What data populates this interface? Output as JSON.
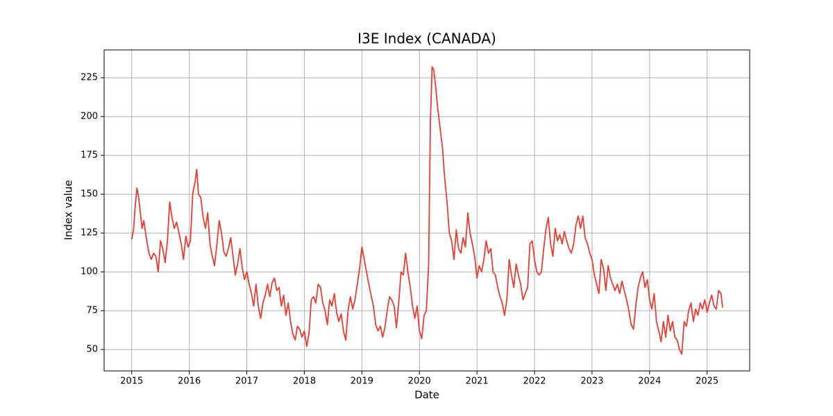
{
  "chart_data": {
    "type": "line",
    "title": "I3E Index (CANADA)",
    "x_label": "Date",
    "y_label": "Index value",
    "xlim": [
      2014.52,
      2025.74
    ],
    "xticks": [
      2015,
      2016,
      2017,
      2018,
      2019,
      2020,
      2021,
      2022,
      2023,
      2024,
      2025
    ],
    "ylim": [
      36.2,
      242.9
    ],
    "yticks": [
      50,
      75,
      100,
      125,
      150,
      175,
      200,
      225
    ],
    "grid": true,
    "series": [
      {
        "color": "#f03a2e",
        "x": [
          2015.0,
          2015.03,
          2015.06,
          2015.09,
          2015.12,
          2015.15,
          2015.18,
          2015.21,
          2015.24,
          2015.27,
          2015.3,
          2015.34,
          2015.38,
          2015.42,
          2015.46,
          2015.5,
          2015.54,
          2015.58,
          2015.62,
          2015.66,
          2015.7,
          2015.74,
          2015.78,
          2015.82,
          2015.86,
          2015.9,
          2015.94,
          2015.98,
          2016.02,
          2016.06,
          2016.1,
          2016.13,
          2016.16,
          2016.2,
          2016.24,
          2016.28,
          2016.32,
          2016.36,
          2016.4,
          2016.44,
          2016.48,
          2016.52,
          2016.56,
          2016.6,
          2016.64,
          2016.68,
          2016.72,
          2016.76,
          2016.8,
          2016.84,
          2016.88,
          2016.92,
          2016.96,
          2017.0,
          2017.04,
          2017.08,
          2017.12,
          2017.16,
          2017.2,
          2017.24,
          2017.28,
          2017.32,
          2017.36,
          2017.4,
          2017.44,
          2017.48,
          2017.52,
          2017.56,
          2017.6,
          2017.64,
          2017.68,
          2017.72,
          2017.76,
          2017.8,
          2017.84,
          2017.88,
          2017.92,
          2017.96,
          2018.0,
          2018.04,
          2018.08,
          2018.12,
          2018.16,
          2018.2,
          2018.24,
          2018.28,
          2018.32,
          2018.36,
          2018.4,
          2018.44,
          2018.48,
          2018.52,
          2018.56,
          2018.6,
          2018.64,
          2018.68,
          2018.72,
          2018.76,
          2018.8,
          2018.84,
          2018.88,
          2018.92,
          2018.96,
          2019.0,
          2019.04,
          2019.08,
          2019.12,
          2019.16,
          2019.2,
          2019.24,
          2019.28,
          2019.32,
          2019.36,
          2019.4,
          2019.44,
          2019.48,
          2019.52,
          2019.56,
          2019.6,
          2019.64,
          2019.68,
          2019.72,
          2019.76,
          2019.8,
          2019.84,
          2019.88,
          2019.92,
          2019.96,
          2020.0,
          2020.04,
          2020.08,
          2020.12,
          2020.16,
          2020.19,
          2020.22,
          2020.25,
          2020.28,
          2020.32,
          2020.36,
          2020.4,
          2020.44,
          2020.48,
          2020.52,
          2020.56,
          2020.6,
          2020.64,
          2020.68,
          2020.72,
          2020.76,
          2020.8,
          2020.84,
          2020.88,
          2020.92,
          2020.96,
          2021.0,
          2021.04,
          2021.08,
          2021.12,
          2021.16,
          2021.2,
          2021.24,
          2021.28,
          2021.32,
          2021.36,
          2021.4,
          2021.44,
          2021.48,
          2021.52,
          2021.56,
          2021.6,
          2021.64,
          2021.68,
          2021.72,
          2021.76,
          2021.8,
          2021.84,
          2021.88,
          2021.92,
          2021.96,
          2022.0,
          2022.04,
          2022.08,
          2022.12,
          2022.16,
          2022.2,
          2022.24,
          2022.28,
          2022.32,
          2022.36,
          2022.4,
          2022.44,
          2022.48,
          2022.52,
          2022.56,
          2022.6,
          2022.64,
          2022.68,
          2022.72,
          2022.76,
          2022.8,
          2022.84,
          2022.88,
          2022.92,
          2022.96,
          2023.0,
          2023.04,
          2023.08,
          2023.12,
          2023.16,
          2023.2,
          2023.24,
          2023.28,
          2023.32,
          2023.36,
          2023.4,
          2023.44,
          2023.48,
          2023.52,
          2023.56,
          2023.6,
          2023.64,
          2023.68,
          2023.72,
          2023.76,
          2023.8,
          2023.84,
          2023.88,
          2023.92,
          2023.96,
          2024.0,
          2024.04,
          2024.08,
          2024.12,
          2024.16,
          2024.2,
          2024.24,
          2024.28,
          2024.32,
          2024.36,
          2024.4,
          2024.44,
          2024.48,
          2024.52,
          2024.56,
          2024.6,
          2024.64,
          2024.68,
          2024.72,
          2024.76,
          2024.8,
          2024.84,
          2024.88,
          2024.92,
          2024.96,
          2025.0,
          2025.04,
          2025.08,
          2025.12,
          2025.16,
          2025.2,
          2025.24,
          2025.27
        ],
        "values": [
          121,
          127,
          142,
          154,
          148,
          138,
          128,
          133,
          125,
          118,
          112,
          108,
          112,
          110,
          100,
          120,
          115,
          106,
          120,
          145,
          135,
          128,
          132,
          125,
          118,
          108,
          123,
          116,
          120,
          150,
          158,
          166,
          150,
          148,
          135,
          128,
          138,
          118,
          110,
          104,
          118,
          133,
          125,
          113,
          110,
          115,
          122,
          110,
          98,
          105,
          115,
          103,
          95,
          100,
          92,
          86,
          78,
          92,
          78,
          70,
          80,
          85,
          92,
          84,
          93,
          96,
          88,
          90,
          78,
          85,
          72,
          80,
          68,
          60,
          56,
          65,
          63,
          58,
          62,
          52,
          60,
          82,
          84,
          80,
          92,
          90,
          80,
          75,
          66,
          82,
          78,
          86,
          74,
          68,
          73,
          62,
          56,
          75,
          84,
          76,
          82,
          92,
          102,
          116,
          108,
          100,
          92,
          85,
          78,
          66,
          62,
          65,
          58,
          64,
          75,
          84,
          82,
          78,
          64,
          80,
          100,
          98,
          112,
          100,
          90,
          78,
          70,
          78,
          62,
          57,
          72,
          75,
          105,
          196,
          232,
          230,
          220,
          205,
          192,
          180,
          160,
          145,
          125,
          120,
          108,
          127,
          115,
          112,
          122,
          116,
          138,
          125,
          118,
          110,
          96,
          104,
          100,
          108,
          120,
          112,
          115,
          100,
          98,
          90,
          84,
          80,
          72,
          82,
          108,
          98,
          90,
          105,
          98,
          92,
          82,
          86,
          90,
          118,
          120,
          108,
          100,
          98,
          100,
          115,
          128,
          135,
          118,
          110,
          128,
          120,
          124,
          118,
          126,
          120,
          115,
          112,
          118,
          130,
          136,
          128,
          136,
          122,
          118,
          112,
          108,
          98,
          92,
          86,
          108,
          102,
          88,
          104,
          96,
          92,
          88,
          92,
          86,
          94,
          88,
          82,
          75,
          66,
          63,
          78,
          90,
          96,
          100,
          90,
          95,
          82,
          76,
          86,
          68,
          62,
          55,
          68,
          58,
          72,
          62,
          68,
          58,
          56,
          50,
          47,
          68,
          65,
          75,
          80,
          68,
          76,
          72,
          80,
          76,
          82,
          74,
          80,
          85,
          78,
          76,
          88,
          86,
          77
        ]
      }
    ]
  }
}
